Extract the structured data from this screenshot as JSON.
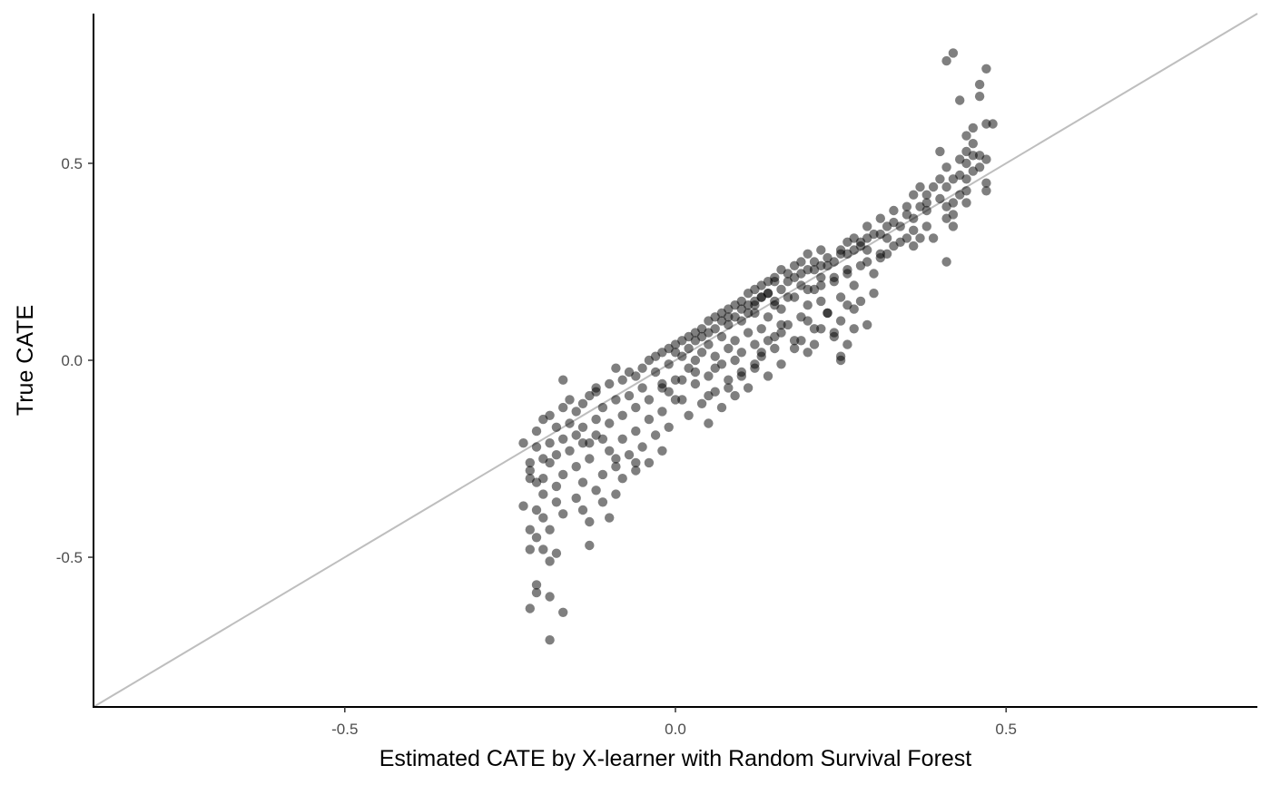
{
  "chart_data": {
    "type": "scatter",
    "title": "",
    "xlabel": "Estimated CATE by X-learner with Random Survival Forest",
    "ylabel": "True CATE",
    "xlim": [
      -0.88,
      0.88
    ],
    "ylim": [
      -0.88,
      0.88
    ],
    "x_ticks": [
      -0.5,
      0.0,
      0.5
    ],
    "x_tick_labels": [
      "-0.5",
      "0.0",
      "0.5"
    ],
    "y_ticks": [
      -0.5,
      0.0,
      0.5
    ],
    "y_tick_labels": [
      "-0.5",
      "0.0",
      "0.5"
    ],
    "grid": false,
    "legend": "none",
    "reference_line": {
      "slope": 1,
      "intercept": 0,
      "color": "#bebebe"
    },
    "point_color": "#000000",
    "point_opacity": 0.5,
    "points": [
      [
        0.42,
        0.78
      ],
      [
        0.41,
        0.76
      ],
      [
        0.47,
        0.74
      ],
      [
        0.46,
        0.7
      ],
      [
        0.46,
        0.67
      ],
      [
        0.43,
        0.66
      ],
      [
        0.48,
        0.6
      ],
      [
        0.47,
        0.6
      ],
      [
        0.45,
        0.59
      ],
      [
        0.44,
        0.57
      ],
      [
        0.45,
        0.55
      ],
      [
        0.4,
        0.53
      ],
      [
        0.44,
        0.53
      ],
      [
        0.45,
        0.52
      ],
      [
        0.46,
        0.52
      ],
      [
        0.47,
        0.51
      ],
      [
        0.43,
        0.51
      ],
      [
        0.44,
        0.5
      ],
      [
        0.41,
        0.49
      ],
      [
        0.46,
        0.49
      ],
      [
        0.45,
        0.48
      ],
      [
        0.43,
        0.47
      ],
      [
        0.42,
        0.46
      ],
      [
        0.44,
        0.46
      ],
      [
        0.4,
        0.46
      ],
      [
        0.47,
        0.45
      ],
      [
        0.39,
        0.44
      ],
      [
        0.41,
        0.44
      ],
      [
        0.37,
        0.44
      ],
      [
        0.44,
        0.43
      ],
      [
        0.47,
        0.43
      ],
      [
        0.43,
        0.42
      ],
      [
        0.38,
        0.42
      ],
      [
        0.36,
        0.42
      ],
      [
        0.4,
        0.41
      ],
      [
        0.42,
        0.4
      ],
      [
        0.44,
        0.4
      ],
      [
        0.41,
        0.39
      ],
      [
        0.35,
        0.39
      ],
      [
        0.38,
        0.38
      ],
      [
        0.33,
        0.38
      ],
      [
        0.42,
        0.37
      ],
      [
        0.41,
        0.36
      ],
      [
        0.36,
        0.36
      ],
      [
        0.31,
        0.36
      ],
      [
        0.42,
        0.34
      ],
      [
        0.38,
        0.34
      ],
      [
        0.34,
        0.34
      ],
      [
        0.29,
        0.34
      ],
      [
        0.36,
        0.33
      ],
      [
        0.3,
        0.32
      ],
      [
        0.32,
        0.31
      ],
      [
        0.27,
        0.31
      ],
      [
        0.39,
        0.31
      ],
      [
        0.37,
        0.31
      ],
      [
        0.34,
        0.3
      ],
      [
        0.26,
        0.3
      ],
      [
        0.28,
        0.29
      ],
      [
        0.36,
        0.29
      ],
      [
        0.29,
        0.28
      ],
      [
        0.25,
        0.28
      ],
      [
        0.22,
        0.28
      ],
      [
        0.26,
        0.27
      ],
      [
        0.32,
        0.27
      ],
      [
        0.2,
        0.27
      ],
      [
        0.23,
        0.26
      ],
      [
        0.31,
        0.26
      ],
      [
        0.21,
        0.25
      ],
      [
        0.41,
        0.25
      ],
      [
        0.19,
        0.25
      ],
      [
        0.28,
        0.24
      ],
      [
        0.23,
        0.24
      ],
      [
        0.18,
        0.24
      ],
      [
        0.2,
        0.23
      ],
      [
        0.16,
        0.23
      ],
      [
        0.26,
        0.22
      ],
      [
        0.3,
        0.22
      ],
      [
        0.17,
        0.22
      ],
      [
        0.15,
        0.21
      ],
      [
        0.22,
        0.21
      ],
      [
        0.24,
        0.2
      ],
      [
        0.14,
        0.2
      ],
      [
        0.19,
        0.19
      ],
      [
        0.13,
        0.19
      ],
      [
        0.27,
        0.19
      ],
      [
        0.16,
        0.18
      ],
      [
        0.12,
        0.18
      ],
      [
        0.21,
        0.18
      ],
      [
        0.14,
        0.17
      ],
      [
        0.3,
        0.17
      ],
      [
        0.11,
        0.17
      ],
      [
        0.18,
        0.16
      ],
      [
        0.25,
        0.16
      ],
      [
        0.13,
        0.16
      ],
      [
        0.1,
        0.15
      ],
      [
        0.22,
        0.15
      ],
      [
        0.15,
        0.15
      ],
      [
        0.09,
        0.14
      ],
      [
        0.12,
        0.14
      ],
      [
        0.2,
        0.14
      ],
      [
        0.27,
        0.13
      ],
      [
        0.08,
        0.13
      ],
      [
        0.16,
        0.13
      ],
      [
        0.11,
        0.12
      ],
      [
        0.07,
        0.12
      ],
      [
        0.23,
        0.12
      ],
      [
        0.14,
        0.11
      ],
      [
        0.06,
        0.11
      ],
      [
        0.19,
        0.11
      ],
      [
        0.1,
        0.1
      ],
      [
        0.25,
        0.1
      ],
      [
        0.05,
        0.1
      ],
      [
        0.17,
        0.09
      ],
      [
        0.08,
        0.09
      ],
      [
        0.13,
        0.08
      ],
      [
        0.04,
        0.08
      ],
      [
        0.21,
        0.08
      ],
      [
        0.11,
        0.07
      ],
      [
        0.03,
        0.07
      ],
      [
        0.16,
        0.07
      ],
      [
        0.07,
        0.06
      ],
      [
        0.24,
        0.06
      ],
      [
        0.02,
        0.06
      ],
      [
        0.14,
        0.05
      ],
      [
        0.09,
        0.05
      ],
      [
        0.18,
        0.05
      ],
      [
        0.01,
        0.05
      ],
      [
        0.05,
        0.04
      ],
      [
        0.12,
        0.04
      ],
      [
        0.0,
        0.04
      ],
      [
        0.26,
        0.04
      ],
      [
        0.08,
        0.03
      ],
      [
        -0.01,
        0.03
      ],
      [
        0.15,
        0.03
      ],
      [
        0.04,
        0.02
      ],
      [
        0.1,
        0.02
      ],
      [
        0.2,
        0.02
      ],
      [
        -0.02,
        0.02
      ],
      [
        0.06,
        0.01
      ],
      [
        0.13,
        0.01
      ],
      [
        0.01,
        0.01
      ],
      [
        -0.03,
        0.01
      ],
      [
        0.25,
        0.0
      ],
      [
        0.09,
        0.0
      ],
      [
        0.03,
        0.0
      ],
      [
        -0.04,
        0.0
      ],
      [
        0.16,
        -0.01
      ],
      [
        0.07,
        -0.01
      ],
      [
        -0.01,
        -0.01
      ],
      [
        0.12,
        -0.02
      ],
      [
        -0.05,
        -0.02
      ],
      [
        0.02,
        -0.02
      ],
      [
        0.1,
        -0.03
      ],
      [
        -0.03,
        -0.03
      ],
      [
        0.05,
        -0.04
      ],
      [
        -0.06,
        -0.04
      ],
      [
        0.14,
        -0.04
      ],
      [
        0.0,
        -0.05
      ],
      [
        -0.08,
        -0.05
      ],
      [
        0.08,
        -0.05
      ],
      [
        -0.02,
        -0.06
      ],
      [
        0.03,
        -0.06
      ],
      [
        -0.1,
        -0.06
      ],
      [
        -0.05,
        -0.07
      ],
      [
        0.11,
        -0.07
      ],
      [
        -0.12,
        -0.07
      ],
      [
        0.06,
        -0.08
      ],
      [
        -0.01,
        -0.08
      ],
      [
        -0.07,
        -0.09
      ],
      [
        -0.13,
        -0.09
      ],
      [
        0.09,
        -0.09
      ],
      [
        0.01,
        -0.1
      ],
      [
        -0.09,
        -0.1
      ],
      [
        -0.04,
        -0.1
      ],
      [
        -0.14,
        -0.11
      ],
      [
        0.04,
        -0.11
      ],
      [
        -0.11,
        -0.12
      ],
      [
        -0.06,
        -0.12
      ],
      [
        0.07,
        -0.12
      ],
      [
        -0.17,
        -0.12
      ],
      [
        -0.15,
        -0.13
      ],
      [
        -0.02,
        -0.13
      ],
      [
        -0.08,
        -0.14
      ],
      [
        -0.19,
        -0.14
      ],
      [
        0.02,
        -0.14
      ],
      [
        -0.12,
        -0.15
      ],
      [
        -0.04,
        -0.15
      ],
      [
        -0.2,
        -0.15
      ],
      [
        -0.16,
        -0.16
      ],
      [
        0.05,
        -0.16
      ],
      [
        -0.1,
        -0.16
      ],
      [
        -0.14,
        -0.17
      ],
      [
        -0.01,
        -0.17
      ],
      [
        -0.18,
        -0.17
      ],
      [
        -0.06,
        -0.18
      ],
      [
        -0.21,
        -0.18
      ],
      [
        -0.12,
        -0.19
      ],
      [
        -0.03,
        -0.19
      ],
      [
        -0.17,
        -0.2
      ],
      [
        -0.08,
        -0.2
      ],
      [
        -0.19,
        -0.21
      ],
      [
        -0.14,
        -0.21
      ],
      [
        -0.05,
        -0.22
      ],
      [
        -0.21,
        -0.22
      ],
      [
        -0.1,
        -0.23
      ],
      [
        -0.16,
        -0.23
      ],
      [
        -0.02,
        -0.23
      ],
      [
        -0.18,
        -0.24
      ],
      [
        -0.07,
        -0.24
      ],
      [
        -0.2,
        -0.25
      ],
      [
        -0.13,
        -0.25
      ],
      [
        -0.04,
        -0.26
      ],
      [
        -0.19,
        -0.26
      ],
      [
        -0.09,
        -0.27
      ],
      [
        -0.15,
        -0.27
      ],
      [
        -0.22,
        -0.28
      ],
      [
        -0.06,
        -0.28
      ],
      [
        -0.17,
        -0.29
      ],
      [
        -0.11,
        -0.29
      ],
      [
        -0.2,
        -0.3
      ],
      [
        -0.08,
        -0.3
      ],
      [
        -0.14,
        -0.31
      ],
      [
        -0.21,
        -0.31
      ],
      [
        -0.18,
        -0.32
      ],
      [
        -0.12,
        -0.33
      ],
      [
        -0.09,
        -0.34
      ],
      [
        -0.2,
        -0.34
      ],
      [
        -0.15,
        -0.35
      ],
      [
        -0.18,
        -0.36
      ],
      [
        -0.11,
        -0.36
      ],
      [
        -0.23,
        -0.37
      ],
      [
        -0.14,
        -0.38
      ],
      [
        -0.21,
        -0.38
      ],
      [
        -0.17,
        -0.39
      ],
      [
        -0.1,
        -0.4
      ],
      [
        -0.2,
        -0.4
      ],
      [
        -0.13,
        -0.41
      ],
      [
        -0.22,
        -0.43
      ],
      [
        -0.19,
        -0.43
      ],
      [
        -0.21,
        -0.45
      ],
      [
        -0.13,
        -0.47
      ],
      [
        -0.2,
        -0.48
      ],
      [
        -0.22,
        -0.48
      ],
      [
        -0.18,
        -0.49
      ],
      [
        -0.19,
        -0.51
      ],
      [
        -0.21,
        -0.57
      ],
      [
        -0.21,
        -0.59
      ],
      [
        -0.19,
        -0.6
      ],
      [
        -0.22,
        -0.63
      ],
      [
        -0.17,
        -0.64
      ],
      [
        -0.19,
        -0.71
      ],
      [
        -0.17,
        -0.05
      ],
      [
        -0.16,
        -0.1
      ],
      [
        -0.12,
        -0.08
      ],
      [
        -0.09,
        -0.02
      ],
      [
        -0.07,
        -0.03
      ],
      [
        -0.15,
        -0.19
      ],
      [
        -0.11,
        -0.2
      ],
      [
        -0.13,
        -0.21
      ],
      [
        -0.09,
        -0.25
      ],
      [
        -0.06,
        -0.26
      ],
      [
        -0.23,
        -0.21
      ],
      [
        -0.22,
        -0.26
      ],
      [
        -0.22,
        -0.3
      ],
      [
        0.15,
        0.2
      ],
      [
        0.17,
        0.2
      ],
      [
        0.18,
        0.21
      ],
      [
        0.19,
        0.22
      ],
      [
        0.21,
        0.23
      ],
      [
        0.22,
        0.24
      ],
      [
        0.24,
        0.25
      ],
      [
        0.25,
        0.27
      ],
      [
        0.27,
        0.28
      ],
      [
        0.28,
        0.3
      ],
      [
        0.29,
        0.31
      ],
      [
        0.31,
        0.32
      ],
      [
        0.32,
        0.34
      ],
      [
        0.33,
        0.35
      ],
      [
        0.35,
        0.37
      ],
      [
        0.37,
        0.39
      ],
      [
        0.38,
        0.4
      ],
      [
        0.12,
        0.15
      ],
      [
        0.13,
        0.16
      ],
      [
        0.14,
        0.17
      ],
      [
        0.1,
        0.13
      ],
      [
        0.11,
        0.14
      ],
      [
        0.09,
        0.11
      ],
      [
        0.08,
        0.11
      ],
      [
        0.06,
        0.08
      ],
      [
        0.05,
        0.07
      ],
      [
        0.04,
        0.06
      ],
      [
        0.03,
        0.05
      ],
      [
        0.02,
        0.03
      ],
      [
        0.0,
        0.02
      ],
      [
        0.07,
        0.1
      ],
      [
        0.12,
        0.12
      ],
      [
        0.15,
        0.14
      ],
      [
        0.17,
        0.16
      ],
      [
        0.2,
        0.18
      ],
      [
        0.22,
        0.19
      ],
      [
        0.24,
        0.21
      ],
      [
        0.26,
        0.23
      ],
      [
        0.29,
        0.25
      ],
      [
        0.31,
        0.27
      ],
      [
        0.33,
        0.29
      ],
      [
        0.35,
        0.31
      ],
      [
        0.2,
        0.1
      ],
      [
        0.22,
        0.08
      ],
      [
        0.18,
        0.03
      ],
      [
        0.23,
        0.12
      ],
      [
        0.26,
        0.14
      ],
      [
        0.28,
        0.15
      ],
      [
        0.27,
        0.08
      ],
      [
        0.29,
        0.09
      ],
      [
        0.25,
        0.01
      ],
      [
        0.24,
        0.07
      ],
      [
        0.21,
        0.04
      ],
      [
        0.19,
        0.05
      ],
      [
        0.03,
        -0.03
      ],
      [
        0.06,
        -0.02
      ],
      [
        0.01,
        -0.05
      ],
      [
        -0.02,
        -0.07
      ],
      [
        0.0,
        -0.1
      ],
      [
        0.05,
        -0.09
      ],
      [
        0.08,
        -0.07
      ],
      [
        0.1,
        -0.04
      ],
      [
        0.12,
        -0.01
      ],
      [
        0.13,
        0.02
      ],
      [
        0.15,
        0.06
      ],
      [
        0.16,
        0.09
      ]
    ]
  }
}
